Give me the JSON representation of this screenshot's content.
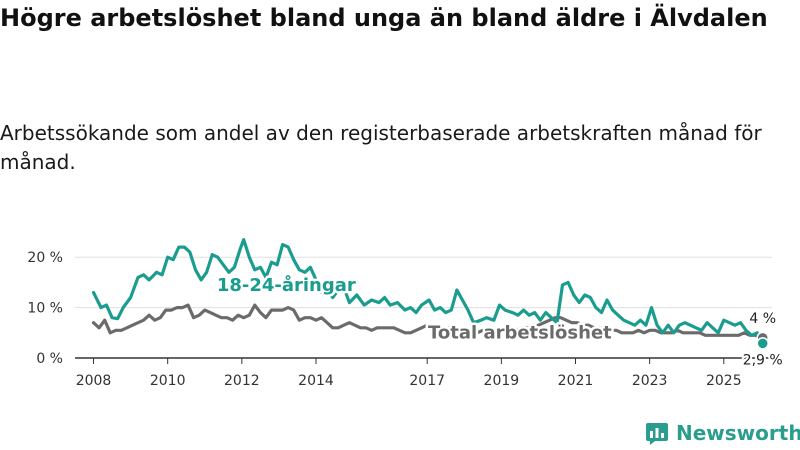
{
  "header": {
    "title": "Högre arbetslöshet bland unga än bland äldre i Älvdalen",
    "subtitle": "Arbetssökande som andel av den registerbaserade arbetskraften månad för månad."
  },
  "brand": {
    "name": "Newsworthy",
    "icon": "newsworthy-logo-icon"
  },
  "colors": {
    "youth": "#1a9c8e",
    "total": "#6b6b6b",
    "axis": "#333333",
    "grid": "#e0e0e0"
  },
  "chart_data": {
    "type": "line",
    "title": "Högre arbetslöshet bland unga än bland äldre i Älvdalen",
    "xlabel": "",
    "ylabel": "",
    "ylim": [
      0,
      25
    ],
    "xlim": [
      2007.5,
      2026.3
    ],
    "yticks": [
      {
        "value": 0,
        "label": "0 %"
      },
      {
        "value": 10,
        "label": "10 %"
      },
      {
        "value": 20,
        "label": "20 %"
      }
    ],
    "xticks": [
      "2008",
      "2010",
      "2012",
      "2014",
      "2017",
      "2019",
      "2021",
      "2023",
      "2025"
    ],
    "grid": true,
    "series": [
      {
        "name": "18-24-åringar",
        "color": "#1a9c8e",
        "label_year": 2013.2,
        "label_value": 14.5,
        "points": [
          [
            2008.0,
            13
          ],
          [
            2008.2,
            10
          ],
          [
            2008.35,
            10.5
          ],
          [
            2008.5,
            8
          ],
          [
            2008.65,
            7.8
          ],
          [
            2008.8,
            10
          ],
          [
            2009.0,
            12
          ],
          [
            2009.2,
            16
          ],
          [
            2009.35,
            16.5
          ],
          [
            2009.5,
            15.5
          ],
          [
            2009.7,
            17
          ],
          [
            2009.85,
            16.5
          ],
          [
            2010.0,
            20
          ],
          [
            2010.15,
            19.5
          ],
          [
            2010.3,
            22
          ],
          [
            2010.45,
            22
          ],
          [
            2010.6,
            21
          ],
          [
            2010.75,
            17.5
          ],
          [
            2010.9,
            15.5
          ],
          [
            2011.05,
            17
          ],
          [
            2011.2,
            20.5
          ],
          [
            2011.35,
            20
          ],
          [
            2011.5,
            18.5
          ],
          [
            2011.65,
            17
          ],
          [
            2011.8,
            18
          ],
          [
            2011.95,
            21.5
          ],
          [
            2012.05,
            23.5
          ],
          [
            2012.2,
            20
          ],
          [
            2012.35,
            17.5
          ],
          [
            2012.5,
            18
          ],
          [
            2012.65,
            16
          ],
          [
            2012.8,
            19
          ],
          [
            2012.95,
            18.5
          ],
          [
            2013.1,
            22.5
          ],
          [
            2013.25,
            22
          ],
          [
            2013.4,
            19.5
          ],
          [
            2013.55,
            17.5
          ],
          [
            2013.7,
            17
          ],
          [
            2013.85,
            18
          ],
          [
            2014.0,
            15.5
          ],
          [
            2014.15,
            13
          ],
          [
            2014.3,
            13.5
          ],
          [
            2014.45,
            12
          ],
          [
            2014.6,
            13.5
          ],
          [
            2014.75,
            14
          ],
          [
            2014.9,
            11
          ],
          [
            2015.1,
            12.5
          ],
          [
            2015.3,
            10.5
          ],
          [
            2015.5,
            11.5
          ],
          [
            2015.7,
            11
          ],
          [
            2015.85,
            12
          ],
          [
            2016.0,
            10.5
          ],
          [
            2016.2,
            11
          ],
          [
            2016.4,
            9.5
          ],
          [
            2016.55,
            10
          ],
          [
            2016.7,
            9
          ],
          [
            2016.85,
            10.5
          ],
          [
            2017.05,
            11.5
          ],
          [
            2017.2,
            9.5
          ],
          [
            2017.35,
            10
          ],
          [
            2017.5,
            9
          ],
          [
            2017.65,
            9.5
          ],
          [
            2017.8,
            13.5
          ],
          [
            2017.95,
            11.5
          ],
          [
            2018.1,
            9.5
          ],
          [
            2018.25,
            7
          ],
          [
            2018.45,
            7.5
          ],
          [
            2018.6,
            8
          ],
          [
            2018.8,
            7.5
          ],
          [
            2018.95,
            10.5
          ],
          [
            2019.1,
            9.5
          ],
          [
            2019.3,
            9
          ],
          [
            2019.45,
            8.5
          ],
          [
            2019.6,
            9.5
          ],
          [
            2019.75,
            8.5
          ],
          [
            2019.9,
            9
          ],
          [
            2020.05,
            7.5
          ],
          [
            2020.2,
            9
          ],
          [
            2020.35,
            8
          ],
          [
            2020.5,
            7
          ],
          [
            2020.65,
            14.5
          ],
          [
            2020.8,
            15
          ],
          [
            2020.95,
            12.5
          ],
          [
            2021.1,
            11
          ],
          [
            2021.25,
            12.5
          ],
          [
            2021.4,
            12
          ],
          [
            2021.55,
            10
          ],
          [
            2021.7,
            9
          ],
          [
            2021.85,
            11.5
          ],
          [
            2022.0,
            9.5
          ],
          [
            2022.15,
            8.5
          ],
          [
            2022.3,
            7.5
          ],
          [
            2022.45,
            7
          ],
          [
            2022.6,
            6.5
          ],
          [
            2022.75,
            7.5
          ],
          [
            2022.9,
            6.5
          ],
          [
            2023.05,
            10
          ],
          [
            2023.2,
            6.5
          ],
          [
            2023.35,
            5
          ],
          [
            2023.5,
            6.5
          ],
          [
            2023.65,
            5
          ],
          [
            2023.8,
            6.5
          ],
          [
            2023.95,
            7
          ],
          [
            2024.1,
            6.5
          ],
          [
            2024.25,
            6
          ],
          [
            2024.4,
            5.5
          ],
          [
            2024.55,
            7
          ],
          [
            2024.7,
            6
          ],
          [
            2024.85,
            5
          ],
          [
            2025.0,
            7.5
          ],
          [
            2025.15,
            7
          ],
          [
            2025.3,
            6.5
          ],
          [
            2025.45,
            7
          ],
          [
            2025.6,
            5.5
          ],
          [
            2025.75,
            4.5
          ],
          [
            2025.9,
            5
          ],
          [
            2026.05,
            2.9
          ]
        ]
      },
      {
        "name": "Total arbetslöshet",
        "color": "#6b6b6b",
        "label_year": 2019.5,
        "label_value": 5.1,
        "points": [
          [
            2008.0,
            7
          ],
          [
            2008.15,
            6
          ],
          [
            2008.3,
            7.5
          ],
          [
            2008.45,
            5
          ],
          [
            2008.6,
            5.5
          ],
          [
            2008.75,
            5.5
          ],
          [
            2008.9,
            6
          ],
          [
            2009.05,
            6.5
          ],
          [
            2009.2,
            7
          ],
          [
            2009.35,
            7.5
          ],
          [
            2009.5,
            8.5
          ],
          [
            2009.65,
            7.5
          ],
          [
            2009.8,
            8
          ],
          [
            2009.95,
            9.5
          ],
          [
            2010.1,
            9.5
          ],
          [
            2010.25,
            10
          ],
          [
            2010.4,
            10
          ],
          [
            2010.55,
            10.5
          ],
          [
            2010.7,
            8
          ],
          [
            2010.85,
            8.5
          ],
          [
            2011.0,
            9.5
          ],
          [
            2011.15,
            9
          ],
          [
            2011.3,
            8.5
          ],
          [
            2011.45,
            8
          ],
          [
            2011.6,
            8
          ],
          [
            2011.75,
            7.5
          ],
          [
            2011.9,
            8.5
          ],
          [
            2012.05,
            8
          ],
          [
            2012.2,
            8.5
          ],
          [
            2012.35,
            10.5
          ],
          [
            2012.5,
            9
          ],
          [
            2012.65,
            8
          ],
          [
            2012.8,
            9.5
          ],
          [
            2012.95,
            9.5
          ],
          [
            2013.1,
            9.5
          ],
          [
            2013.25,
            10
          ],
          [
            2013.4,
            9.5
          ],
          [
            2013.55,
            7.5
          ],
          [
            2013.7,
            8
          ],
          [
            2013.85,
            8
          ],
          [
            2014.0,
            7.5
          ],
          [
            2014.15,
            8
          ],
          [
            2014.3,
            7
          ],
          [
            2014.45,
            6
          ],
          [
            2014.6,
            6
          ],
          [
            2014.75,
            6.5
          ],
          [
            2014.9,
            7
          ],
          [
            2015.05,
            6.5
          ],
          [
            2015.2,
            6
          ],
          [
            2015.35,
            6
          ],
          [
            2015.5,
            5.5
          ],
          [
            2015.65,
            6
          ],
          [
            2015.8,
            6
          ],
          [
            2015.95,
            6
          ],
          [
            2016.1,
            6
          ],
          [
            2016.25,
            5.5
          ],
          [
            2016.4,
            5
          ],
          [
            2016.55,
            5
          ],
          [
            2016.7,
            5.5
          ],
          [
            2016.85,
            6
          ],
          [
            2017.0,
            6.5
          ],
          [
            2017.15,
            5.5
          ],
          [
            2017.3,
            5.5
          ],
          [
            2017.45,
            5.5
          ],
          [
            2017.6,
            6
          ],
          [
            2017.75,
            5.5
          ],
          [
            2017.9,
            5.5
          ],
          [
            2018.05,
            5.5
          ],
          [
            2018.2,
            5
          ],
          [
            2018.35,
            5
          ],
          [
            2018.5,
            5.5
          ],
          [
            2018.65,
            5.5
          ],
          [
            2018.8,
            5.5
          ],
          [
            2018.95,
            5.5
          ],
          [
            2019.1,
            6
          ],
          [
            2019.25,
            5.5
          ],
          [
            2019.4,
            5.5
          ],
          [
            2019.55,
            6
          ],
          [
            2019.7,
            6
          ],
          [
            2019.85,
            6
          ],
          [
            2020.0,
            6.5
          ],
          [
            2020.15,
            7
          ],
          [
            2020.3,
            7.5
          ],
          [
            2020.45,
            8
          ],
          [
            2020.6,
            8
          ],
          [
            2020.75,
            7.5
          ],
          [
            2020.9,
            7
          ],
          [
            2021.05,
            7
          ],
          [
            2021.2,
            6.5
          ],
          [
            2021.35,
            6.5
          ],
          [
            2021.5,
            6
          ],
          [
            2021.65,
            6
          ],
          [
            2021.8,
            5.5
          ],
          [
            2021.95,
            5.5
          ],
          [
            2022.1,
            5.5
          ],
          [
            2022.25,
            5
          ],
          [
            2022.4,
            5
          ],
          [
            2022.55,
            5
          ],
          [
            2022.7,
            5.5
          ],
          [
            2022.85,
            5
          ],
          [
            2023.0,
            5.5
          ],
          [
            2023.15,
            5.5
          ],
          [
            2023.3,
            5
          ],
          [
            2023.45,
            5
          ],
          [
            2023.6,
            5
          ],
          [
            2023.75,
            5.5
          ],
          [
            2023.9,
            5
          ],
          [
            2024.05,
            5
          ],
          [
            2024.2,
            5
          ],
          [
            2024.35,
            5
          ],
          [
            2024.5,
            4.5
          ],
          [
            2024.65,
            4.5
          ],
          [
            2024.8,
            4.5
          ],
          [
            2024.95,
            4.5
          ],
          [
            2025.1,
            4.5
          ],
          [
            2025.25,
            4.5
          ],
          [
            2025.4,
            4.5
          ],
          [
            2025.55,
            5
          ],
          [
            2025.7,
            4.5
          ],
          [
            2025.85,
            4.5
          ],
          [
            2026.05,
            4
          ]
        ]
      }
    ],
    "end_labels": [
      {
        "series": "Total arbetslöshet",
        "value": 4,
        "text": "4 %"
      },
      {
        "series": "18-24-åringar",
        "value": 2.9,
        "text": "2,9 %"
      }
    ]
  }
}
